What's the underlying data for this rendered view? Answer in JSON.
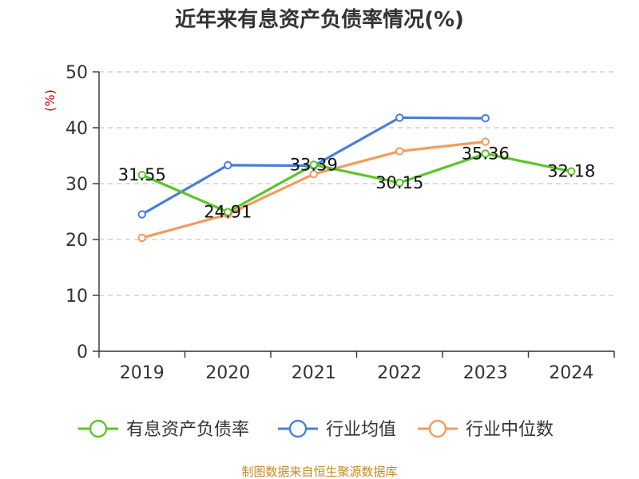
{
  "chart_data": {
    "type": "line",
    "title": "近年来有息资产负债率情况(%)",
    "ylabel": "(%)",
    "categories": [
      "2019",
      "2020",
      "2021",
      "2022",
      "2023",
      "2024"
    ],
    "ylim": [
      0,
      50
    ],
    "yticks": [
      0,
      10,
      20,
      30,
      40,
      50
    ],
    "grid": true,
    "legend_position": "bottom",
    "series": [
      {
        "name": "有息资产负债率",
        "color": "#5cc42a",
        "values": [
          31.55,
          24.91,
          33.39,
          30.15,
          35.36,
          32.18
        ],
        "data_labels": [
          "31.55",
          "24.91",
          "33.39",
          "30.15",
          "35.36",
          "32.18"
        ]
      },
      {
        "name": "行业均值",
        "color": "#4a7fd8",
        "values": [
          24.5,
          33.3,
          33.2,
          41.8,
          41.7,
          null
        ]
      },
      {
        "name": "行业中位数",
        "color": "#f59a5f",
        "values": [
          20.3,
          24.5,
          31.7,
          35.8,
          37.5,
          null
        ]
      }
    ]
  },
  "source_note": "制图数据来自恒生聚源数据库"
}
